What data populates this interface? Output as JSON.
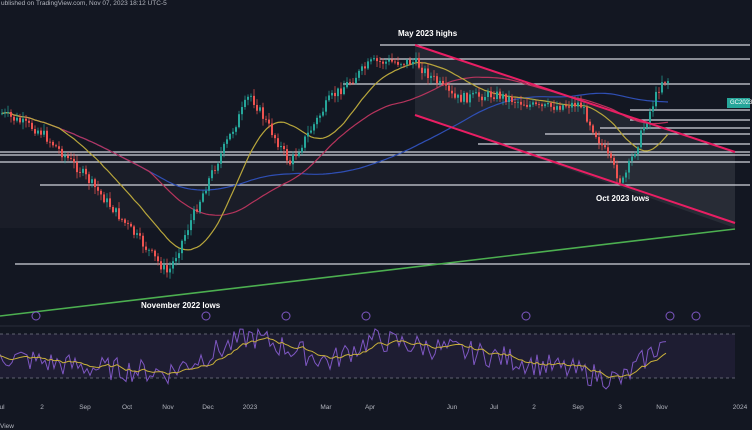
{
  "header": {
    "text": "ublished on TradingView.com, Nov 07, 2023 18:12 UTC-5"
  },
  "footer": {
    "text": "View"
  },
  "symbol_tag": "GC2023",
  "colors": {
    "background": "#131722",
    "candle_up": "#26a69a",
    "candle_down": "#ef5350",
    "ma_fast": "#b8a63c",
    "ma_mid": "#b5345c",
    "ma_slow": "#2f4fb5",
    "channel": "#e91e63",
    "trendline": "#4caf50",
    "rsi": "#7e57c2",
    "rsi_signal": "#c9b03a",
    "levels": "#d1d4dc",
    "event_icon": "#7e57c2"
  },
  "chart_data": {
    "type": "line",
    "title": "",
    "ylabel": "",
    "xlabel": "",
    "x_ticks": [
      "ul",
      "2",
      "Sep",
      "Oct",
      "Nov",
      "Dec",
      "2023",
      "Mar",
      "Apr",
      "Jun",
      "Jul",
      "2",
      "Sep",
      "3",
      "Nov",
      "2024"
    ],
    "annotations": [
      "May 2023 highs",
      "November 2022 lows",
      "Oct 2023 lows"
    ],
    "grid": false,
    "legend": "none",
    "price_path": [
      {
        "x": "Jul",
        "y": 0.78
      },
      {
        "x": "Aug",
        "y": 0.7
      },
      {
        "x": "Sep",
        "y": 0.52
      },
      {
        "x": "Oct",
        "y": 0.3
      },
      {
        "x": "Nov 2022",
        "y": 0.08
      },
      {
        "x": "Dec",
        "y": 0.5
      },
      {
        "x": "Jan 2023",
        "y": 0.86
      },
      {
        "x": "Feb 2023",
        "y": 0.56
      },
      {
        "x": "Mar 2023",
        "y": 0.84
      },
      {
        "x": "Apr 2023",
        "y": 1.0
      },
      {
        "x": "May 2023",
        "y": 1.0
      },
      {
        "x": "Jun 2023",
        "y": 0.84
      },
      {
        "x": "Jul 2023",
        "y": 0.86
      },
      {
        "x": "Aug 2023",
        "y": 0.8
      },
      {
        "x": "Sep 2023",
        "y": 0.82
      },
      {
        "x": "Oct 2023",
        "y": 0.47
      },
      {
        "x": "Nov 2023",
        "y": 0.92
      }
    ],
    "rsi_path": [
      {
        "x": "Jul",
        "y": 50
      },
      {
        "x": "Sep",
        "y": 40
      },
      {
        "x": "Nov 2022",
        "y": 35
      },
      {
        "x": "Jan 2023",
        "y": 68
      },
      {
        "x": "Mar 2023",
        "y": 45
      },
      {
        "x": "Apr 2023",
        "y": 65
      },
      {
        "x": "Jul 2023",
        "y": 50
      },
      {
        "x": "Oct 2023",
        "y": 28
      },
      {
        "x": "Nov 2023",
        "y": 62
      }
    ]
  }
}
